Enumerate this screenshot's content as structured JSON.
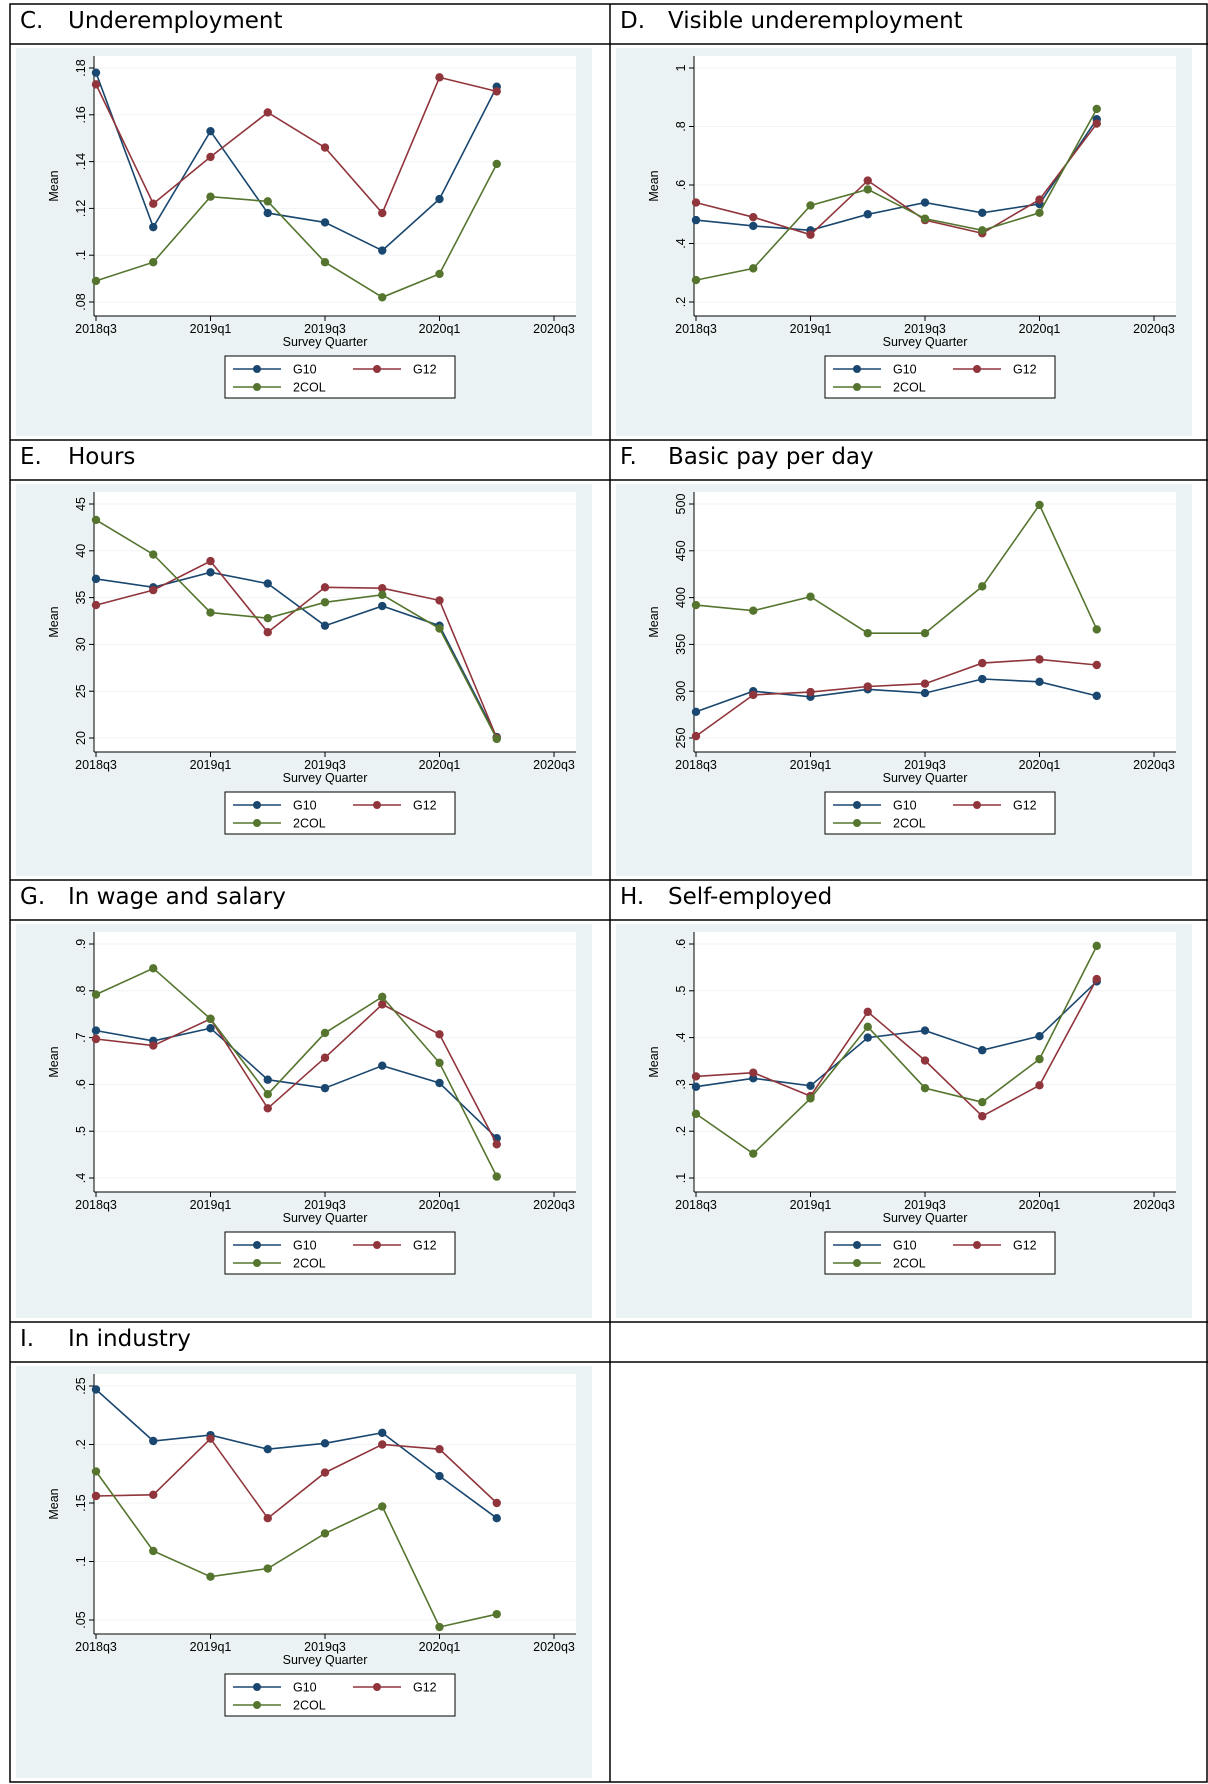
{
  "colors": {
    "G10": "#1a476f",
    "G12": "#90353b",
    "2COL": "#55752f",
    "plot_bg": "#eaf2f3",
    "grid": "#f0f4f5"
  },
  "chart_data": [
    {
      "id": "C",
      "letter": "C.",
      "title": "Underemployment",
      "type": "line",
      "xlabel": "Survey Quarter",
      "ylabel": "Mean",
      "x_ticks": [
        "2018q3",
        "2019q1",
        "2019q3",
        "2020q1",
        "2020q3"
      ],
      "y_ticks": [
        ".08",
        ".1",
        ".12",
        ".14",
        ".16",
        ".18"
      ],
      "ylim": [
        0.08,
        0.18
      ],
      "series": [
        {
          "name": "G10",
          "values": [
            0.178,
            0.112,
            0.153,
            0.118,
            0.114,
            0.102,
            0.124,
            0.172
          ]
        },
        {
          "name": "G12",
          "values": [
            0.173,
            0.122,
            0.142,
            0.161,
            0.146,
            0.118,
            0.176,
            0.17
          ]
        },
        {
          "name": "2COL",
          "values": [
            0.089,
            0.097,
            0.125,
            0.123,
            0.097,
            0.082,
            0.092,
            0.139
          ]
        }
      ]
    },
    {
      "id": "D",
      "letter": "D.",
      "title": "Visible underemployment",
      "type": "line",
      "xlabel": "Survey Quarter",
      "ylabel": "Mean",
      "x_ticks": [
        "2018q3",
        "2019q1",
        "2019q3",
        "2020q1",
        "2020q3"
      ],
      "y_ticks": [
        ".2",
        ".4",
        ".6",
        ".8",
        "1"
      ],
      "ylim": [
        0.2,
        1.0
      ],
      "series": [
        {
          "name": "G10",
          "values": [
            0.48,
            0.46,
            0.445,
            0.5,
            0.54,
            0.505,
            0.535,
            0.825
          ]
        },
        {
          "name": "G12",
          "values": [
            0.54,
            0.49,
            0.43,
            0.615,
            0.48,
            0.435,
            0.55,
            0.81
          ]
        },
        {
          "name": "2COL",
          "values": [
            0.275,
            0.315,
            0.53,
            0.585,
            0.485,
            0.445,
            0.505,
            0.86
          ]
        }
      ]
    },
    {
      "id": "E",
      "letter": "E.",
      "title": "Hours",
      "type": "line",
      "xlabel": "Survey Quarter",
      "ylabel": "Mean",
      "x_ticks": [
        "2018q3",
        "2019q1",
        "2019q3",
        "2020q1",
        "2020q3"
      ],
      "y_ticks": [
        "20",
        "25",
        "30",
        "35",
        "40",
        "45"
      ],
      "ylim": [
        20,
        45
      ],
      "series": [
        {
          "name": "G10",
          "values": [
            37.0,
            36.1,
            37.7,
            36.5,
            32.0,
            34.1,
            32.0,
            20.1
          ]
        },
        {
          "name": "G12",
          "values": [
            34.2,
            35.8,
            38.9,
            31.3,
            36.1,
            36.0,
            34.7,
            20.0
          ]
        },
        {
          "name": "2COL",
          "values": [
            43.3,
            39.6,
            33.4,
            32.8,
            34.5,
            35.3,
            31.7,
            19.9
          ]
        }
      ]
    },
    {
      "id": "F",
      "letter": "F.",
      "title": "Basic pay per day",
      "type": "line",
      "xlabel": "Survey Quarter",
      "ylabel": "Mean",
      "x_ticks": [
        "2018q3",
        "2019q1",
        "2019q3",
        "2020q1",
        "2020q3"
      ],
      "y_ticks": [
        "250",
        "300",
        "350",
        "400",
        "450",
        "500"
      ],
      "ylim": [
        250,
        500
      ],
      "series": [
        {
          "name": "G10",
          "values": [
            278,
            300,
            294,
            302,
            298,
            313,
            310,
            295
          ]
        },
        {
          "name": "G12",
          "values": [
            252,
            296,
            299,
            305,
            308,
            330,
            334,
            328
          ]
        },
        {
          "name": "2COL",
          "values": [
            392,
            386,
            401,
            362,
            362,
            412,
            499,
            366
          ]
        }
      ]
    },
    {
      "id": "G",
      "letter": "G.",
      "title": "In wage and salary",
      "type": "line",
      "xlabel": "Survey Quarter",
      "ylabel": "Mean",
      "x_ticks": [
        "2018q3",
        "2019q1",
        "2019q3",
        "2020q1",
        "2020q3"
      ],
      "y_ticks": [
        ".4",
        ".5",
        ".6",
        ".7",
        ".8",
        ".9"
      ],
      "ylim": [
        0.4,
        0.9
      ],
      "series": [
        {
          "name": "G10",
          "values": [
            0.715,
            0.693,
            0.72,
            0.61,
            0.592,
            0.64,
            0.603,
            0.485
          ]
        },
        {
          "name": "G12",
          "values": [
            0.697,
            0.683,
            0.74,
            0.549,
            0.657,
            0.771,
            0.707,
            0.472
          ]
        },
        {
          "name": "2COL",
          "values": [
            0.792,
            0.848,
            0.74,
            0.579,
            0.71,
            0.787,
            0.646,
            0.403
          ]
        }
      ]
    },
    {
      "id": "H",
      "letter": "H.",
      "title": "Self-employed",
      "type": "line",
      "xlabel": "Survey Quarter",
      "ylabel": "Mean",
      "x_ticks": [
        "2018q3",
        "2019q1",
        "2019q3",
        "2020q1",
        "2020q3"
      ],
      "y_ticks": [
        ".1",
        ".2",
        ".3",
        ".4",
        ".5",
        ".6"
      ],
      "ylim": [
        0.1,
        0.6
      ],
      "series": [
        {
          "name": "G10",
          "values": [
            0.295,
            0.313,
            0.297,
            0.4,
            0.415,
            0.373,
            0.403,
            0.52
          ]
        },
        {
          "name": "G12",
          "values": [
            0.317,
            0.325,
            0.275,
            0.455,
            0.351,
            0.232,
            0.298,
            0.525
          ]
        },
        {
          "name": "2COL",
          "values": [
            0.237,
            0.152,
            0.27,
            0.423,
            0.292,
            0.262,
            0.354,
            0.596
          ]
        }
      ]
    },
    {
      "id": "I",
      "letter": "I.",
      "title": "In industry",
      "type": "line",
      "xlabel": "Survey Quarter",
      "ylabel": "Mean",
      "x_ticks": [
        "2018q3",
        "2019q1",
        "2019q3",
        "2020q1",
        "2020q3"
      ],
      "y_ticks": [
        ".05",
        ".1",
        ".15",
        ".2",
        ".25"
      ],
      "ylim": [
        0.05,
        0.25
      ],
      "series": [
        {
          "name": "G10",
          "values": [
            0.247,
            0.203,
            0.208,
            0.196,
            0.201,
            0.21,
            0.173,
            0.137
          ]
        },
        {
          "name": "G12",
          "values": [
            0.156,
            0.157,
            0.205,
            0.137,
            0.176,
            0.2,
            0.196,
            0.15
          ]
        },
        {
          "name": "2COL",
          "values": [
            0.177,
            0.109,
            0.087,
            0.094,
            0.124,
            0.147,
            0.044,
            0.055
          ]
        }
      ]
    }
  ]
}
